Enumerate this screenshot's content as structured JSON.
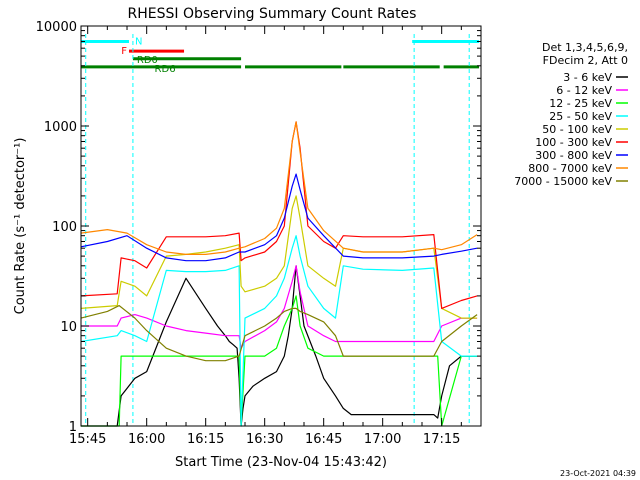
{
  "chart_data": {
    "type": "line",
    "title": "RHESSI Observing Summary Count Rates",
    "xlabel": "Start Time (23-Nov-04 15:43:42)",
    "ylabel": "Count Rate (s⁻¹ detector⁻¹)",
    "y_scale": "log",
    "ylim": [
      1,
      10000
    ],
    "xlim_minutes_after_1545": [
      -1.7,
      100
    ],
    "x_ticks": [
      "15:45",
      "16:00",
      "16:15",
      "16:30",
      "16:45",
      "17:00",
      "17:15"
    ],
    "x_tick_minutes": [
      0,
      15,
      30,
      45,
      60,
      75,
      90
    ],
    "y_ticks": [
      "1",
      "10",
      "100",
      "1000",
      "10000"
    ],
    "y_tick_values": [
      1,
      10,
      100,
      1000,
      10000
    ],
    "legend_header": [
      "Det 1,3,4,5,6,9,",
      "FDecim 2, Att 0"
    ],
    "legend_placement": "right",
    "timestamp": "23-Oct-2021 04:39",
    "flags": [
      {
        "label": "N",
        "color": "#00ffff",
        "level": 7000,
        "segments": [
          [
            -1.7,
            10.5
          ],
          [
            82.5,
            99.5
          ]
        ]
      },
      {
        "label": "F",
        "color": "#ff0000",
        "level": 5600,
        "segments": [
          [
            10.5,
            24.5
          ]
        ]
      },
      {
        "label": "RD0",
        "color": "#008000",
        "level": 4700,
        "segments": [
          [
            11.5,
            39
          ]
        ]
      },
      {
        "label": "RD6",
        "color": "#008000",
        "level": 3900,
        "segments": [
          [
            -1.7,
            39
          ],
          [
            40,
            64.5
          ],
          [
            65,
            89.5
          ],
          [
            90.5,
            99.5
          ]
        ]
      }
    ],
    "night_markers_minutes": [
      -0.5,
      11.5,
      83,
      97
    ],
    "series": [
      {
        "name": "3 - 6 keV",
        "color": "#000000",
        "x": [
          -1.7,
          7.5,
          8.5,
          12,
          15,
          20,
          25,
          30,
          33,
          35,
          36,
          37,
          38,
          38.5,
          39,
          39.5,
          40,
          42,
          45,
          48,
          50,
          51,
          52,
          52.5,
          53,
          54,
          55,
          58,
          60,
          63,
          65,
          67,
          70,
          75,
          80,
          85,
          88,
          89,
          90,
          92,
          95,
          97,
          99
        ],
        "y": [
          1,
          1,
          2,
          3,
          3.5,
          11,
          30,
          15,
          10,
          8,
          7,
          6.5,
          6,
          3,
          1,
          1.5,
          2,
          2.5,
          3,
          3.5,
          5,
          8,
          15,
          25,
          40,
          20,
          10,
          5,
          3,
          2,
          1.5,
          1.3,
          1.3,
          1.3,
          1.3,
          1.3,
          1.3,
          1.2,
          2,
          4,
          5,
          5,
          5
        ]
      },
      {
        "name": "6 - 12 keV",
        "color": "#ff00ff",
        "x": [
          -1.7,
          7.5,
          8.5,
          12,
          15,
          20,
          25,
          30,
          35,
          38.5,
          39,
          40,
          45,
          48,
          50,
          52,
          53,
          54,
          56,
          60,
          63,
          65,
          70,
          80,
          88,
          90,
          95,
          99
        ],
        "y": [
          10,
          10,
          12,
          13,
          12,
          10,
          9,
          8.5,
          8,
          8,
          6,
          7,
          9,
          11,
          15,
          28,
          40,
          22,
          10,
          8,
          7,
          7,
          7,
          7,
          7,
          10,
          12,
          12
        ]
      },
      {
        "name": "12 - 25 keV",
        "color": "#00ff00",
        "x": [
          -1.7,
          7.5,
          8,
          8.5,
          12,
          15,
          20,
          25,
          30,
          35,
          38.5,
          39,
          40,
          45,
          48,
          50,
          52,
          53,
          54,
          56,
          60,
          63,
          65,
          70,
          80,
          88,
          89,
          90,
          95,
          99
        ],
        "y": [
          1,
          1,
          1,
          5,
          5,
          5,
          5,
          5,
          5,
          5,
          5,
          1,
          5,
          5,
          6,
          10,
          15,
          20,
          10,
          6,
          5,
          5,
          5,
          5,
          5,
          5,
          5,
          1,
          5,
          5
        ]
      },
      {
        "name": "25 - 50 keV",
        "color": "#00ffff",
        "x": [
          -1.7,
          7.5,
          8.5,
          12,
          15,
          20,
          25,
          30,
          35,
          38.5,
          39,
          40,
          45,
          48,
          50,
          52,
          53,
          54,
          56,
          60,
          63,
          65,
          70,
          80,
          88,
          90,
          95,
          99
        ],
        "y": [
          7,
          8,
          9,
          8,
          7,
          36,
          35,
          35,
          36,
          40,
          1,
          12,
          15,
          20,
          30,
          60,
          80,
          50,
          25,
          15,
          12,
          40,
          37,
          36,
          38,
          7,
          5,
          5
        ]
      },
      {
        "name": "50 - 100 keV",
        "color": "#cccc00",
        "x": [
          -1.7,
          7.5,
          8.5,
          12,
          15,
          20,
          25,
          30,
          35,
          38.5,
          39,
          40,
          45,
          48,
          50,
          52,
          53,
          54,
          56,
          60,
          63,
          65,
          70,
          80,
          88,
          90,
          95,
          99
        ],
        "y": [
          15,
          16,
          28,
          25,
          20,
          50,
          52,
          55,
          60,
          65,
          25,
          22,
          25,
          30,
          40,
          150,
          200,
          120,
          40,
          30,
          25,
          60,
          55,
          55,
          60,
          15,
          12,
          12
        ]
      },
      {
        "name": "100 - 300 keV",
        "color": "#ff0000",
        "x": [
          -1.7,
          7.5,
          8.5,
          12,
          15,
          20,
          25,
          30,
          35,
          38.5,
          39,
          40,
          45,
          48,
          50,
          52,
          53,
          54,
          56,
          60,
          63,
          65,
          70,
          80,
          88,
          90,
          95,
          99
        ],
        "y": [
          20,
          21,
          48,
          45,
          38,
          78,
          78,
          78,
          80,
          85,
          45,
          48,
          55,
          70,
          100,
          700,
          1100,
          600,
          100,
          70,
          60,
          80,
          78,
          78,
          82,
          15,
          18,
          20
        ]
      },
      {
        "name": "300 - 800 keV",
        "color": "#0000ff",
        "x": [
          -1.7,
          5,
          10,
          15,
          20,
          25,
          30,
          35,
          38.5,
          40,
          45,
          48,
          50,
          52,
          53,
          54,
          56,
          60,
          65,
          70,
          80,
          88,
          90,
          95,
          99
        ],
        "y": [
          62,
          70,
          80,
          60,
          48,
          45,
          45,
          48,
          55,
          55,
          65,
          80,
          120,
          250,
          330,
          230,
          120,
          80,
          50,
          48,
          48,
          50,
          52,
          56,
          60
        ]
      },
      {
        "name": "800 - 7000 keV",
        "color": "#ff8800",
        "x": [
          -1.7,
          5,
          10,
          15,
          20,
          25,
          30,
          35,
          38.5,
          40,
          45,
          48,
          50,
          52,
          53,
          54,
          56,
          60,
          65,
          70,
          80,
          88,
          90,
          95,
          99
        ],
        "y": [
          85,
          92,
          85,
          65,
          55,
          52,
          52,
          55,
          60,
          62,
          75,
          95,
          150,
          700,
          1100,
          550,
          150,
          90,
          60,
          55,
          55,
          60,
          58,
          65,
          82
        ]
      },
      {
        "name": "7000 - 15000 keV",
        "color": "#808000",
        "x": [
          -1.7,
          5,
          8,
          12,
          15,
          20,
          25,
          30,
          35,
          38.5,
          40,
          45,
          48,
          50,
          52,
          53,
          54,
          56,
          60,
          63,
          65,
          70,
          80,
          85,
          88,
          90,
          95,
          99
        ],
        "y": [
          12,
          14,
          16,
          12,
          9,
          6,
          5,
          4.5,
          4.5,
          5,
          8,
          10,
          12,
          14,
          15,
          15,
          14,
          13,
          11,
          8,
          5,
          5,
          5,
          5,
          5,
          7,
          10,
          13
        ]
      }
    ]
  }
}
